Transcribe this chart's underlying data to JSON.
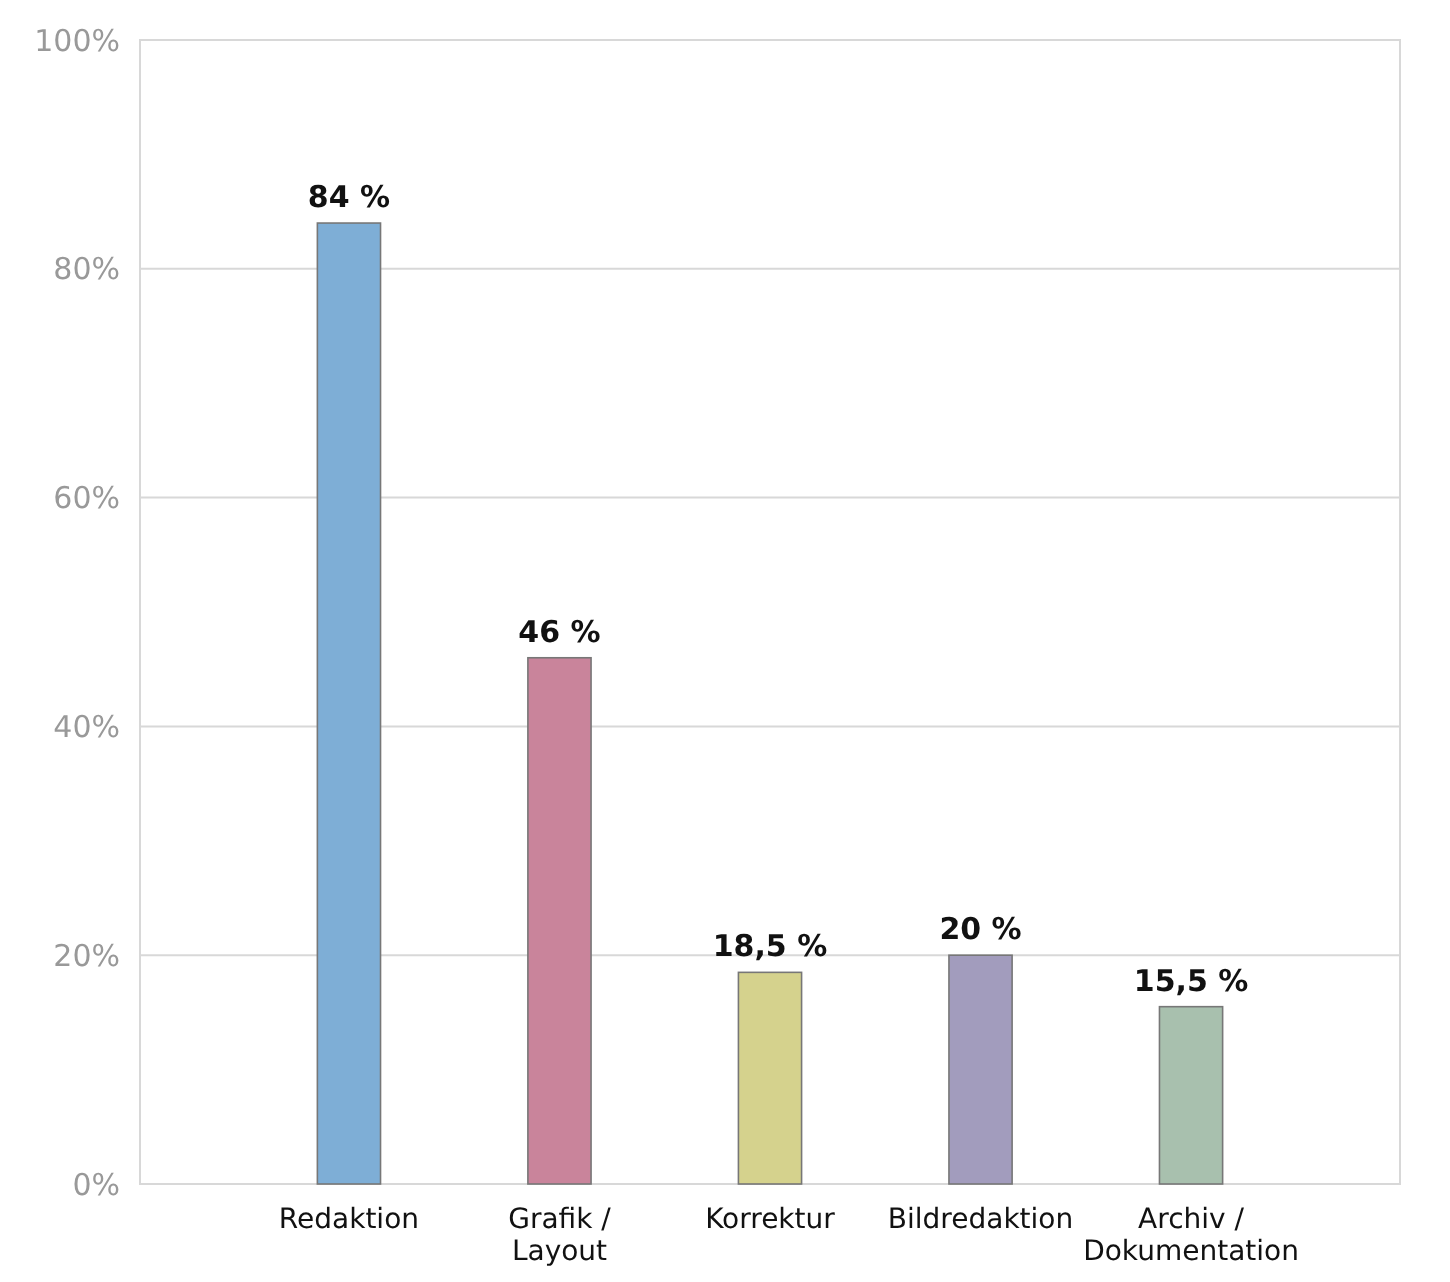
{
  "chart_data": {
    "type": "bar",
    "categories": [
      "Redaktion",
      "Grafik /\nLayout",
      "Korrektur",
      "Bildredaktion",
      "Archiv /\nDokumentation"
    ],
    "values": [
      84,
      46,
      18.5,
      20,
      15.5
    ],
    "colors": [
      "#7eaed6",
      "#c9849b",
      "#d5d28d",
      "#a29cbd",
      "#a8c0ae"
    ],
    "value_labels": [
      "84 %",
      "46 %",
      "18,5 %",
      "20 %",
      "15,5 %"
    ],
    "ylim": [
      0,
      100
    ],
    "yticks": [
      {
        "value": 0,
        "label": "0%"
      },
      {
        "value": 20,
        "label": "20%"
      },
      {
        "value": 40,
        "label": "40%"
      },
      {
        "value": 60,
        "label": "60%"
      },
      {
        "value": 80,
        "label": "80%"
      },
      {
        "value": 100,
        "label": "100%"
      }
    ],
    "grid": "y"
  }
}
